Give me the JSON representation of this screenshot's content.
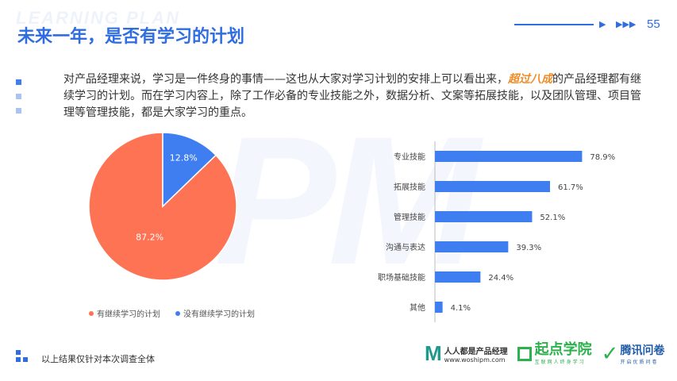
{
  "watermark": {
    "title": "LEARNING PLAN",
    "big": "PM"
  },
  "header": {
    "title": "未来一年，是否有学习的计划",
    "page_number": "55",
    "accent": "#2f6de0"
  },
  "intro": {
    "part1": "对产品经理来说，学习是一件终身的事情——这也从大家对学习计划的安排上可以看出来，",
    "highlight": "超过八成",
    "part2": "的产品经理都有继续学习的计划。而在学习内容上，除了工作必备的专业技能之外，数据分析、文案等拓展技能，以及团队管理、项目管理等管理技能，都是大家学习的重点。",
    "highlight_color": "#f08a24"
  },
  "footer": {
    "note": "以上结果仅针对本次调查全体"
  },
  "logos": {
    "renren_name": "人人都是产品经理",
    "renren_url": "www.woshipm.com",
    "qidian_name": "起点学院",
    "qidian_sub": "互联网人终身学习",
    "tencent_name": "腾讯问卷",
    "tencent_sub": "开启优质问卷"
  },
  "chart_data": [
    {
      "type": "pie",
      "slices": [
        {
          "label": "有继续学习的计划",
          "value": 87.2,
          "display": "87.2%",
          "color": "#ff7355"
        },
        {
          "label": "没有继续学习的计划",
          "value": 12.8,
          "display": "12.8%",
          "color": "#3f7ef0"
        }
      ]
    },
    {
      "type": "bar",
      "orientation": "horizontal",
      "categories": [
        "专业技能",
        "拓展技能",
        "管理技能",
        "沟通与表达",
        "职场基础技能",
        "其他"
      ],
      "values": [
        78.9,
        61.7,
        52.1,
        39.3,
        24.4,
        4.1
      ],
      "labels": [
        "78.9%",
        "61.7%",
        "52.1%",
        "39.3%",
        "24.4%",
        "4.1%"
      ],
      "color": "#3f7ef0",
      "xlim": [
        0,
        100
      ]
    }
  ]
}
